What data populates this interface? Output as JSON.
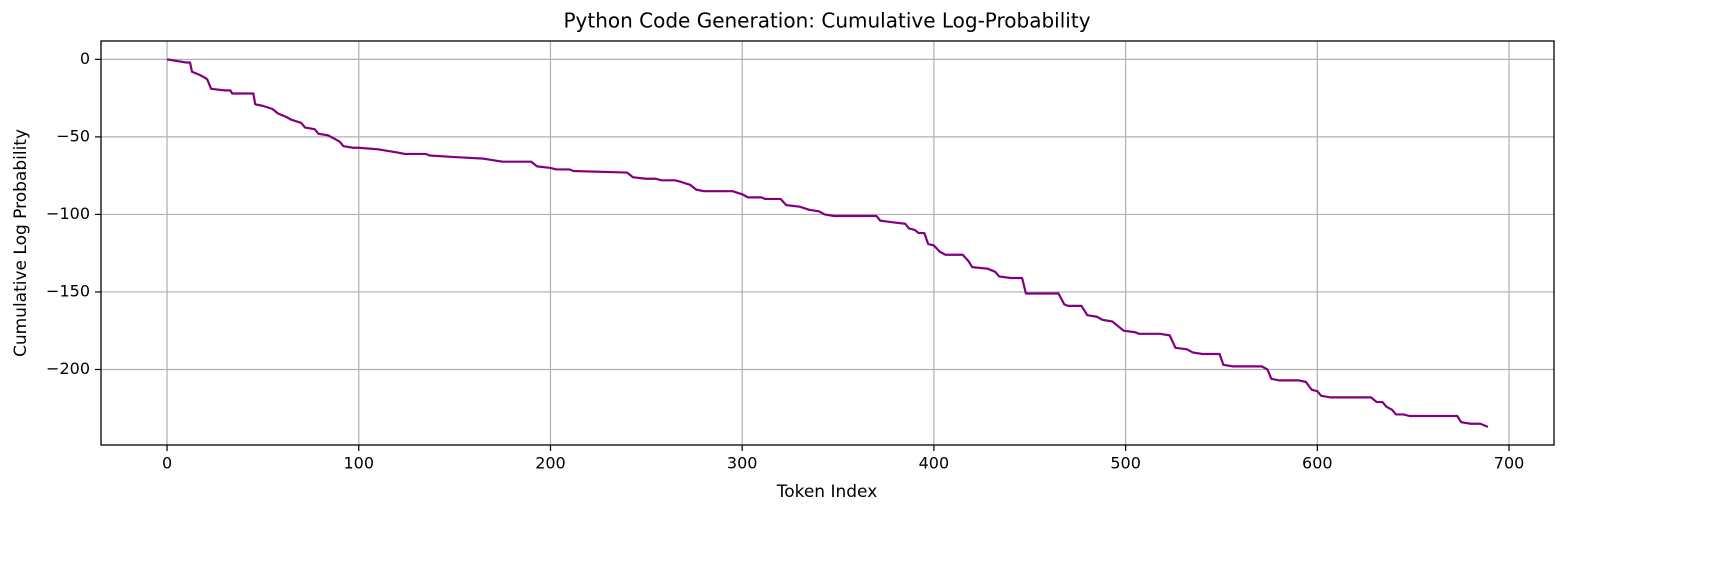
{
  "chart_data": {
    "type": "line",
    "title": "Python Code Generation: Cumulative Log-Probability",
    "x_label": "Token Index",
    "y_label": "Cumulative Log Probability",
    "color": "#800080",
    "grid": true,
    "x": [
      0,
      5,
      10,
      12,
      13,
      17,
      20,
      21,
      23,
      30,
      33,
      34,
      45,
      46,
      50,
      55,
      58,
      62,
      65,
      70,
      72,
      77,
      79,
      84,
      87,
      90,
      92,
      97,
      100,
      110,
      120,
      124,
      135,
      137,
      150,
      165,
      170,
      175,
      190,
      193,
      200,
      203,
      210,
      212,
      240,
      243,
      250,
      255,
      258,
      265,
      268,
      273,
      276,
      280,
      295,
      300,
      303,
      310,
      312,
      320,
      323,
      330,
      335,
      340,
      343,
      348,
      370,
      372,
      378,
      385,
      387,
      390,
      392,
      395,
      397,
      400,
      403,
      406,
      415,
      418,
      420,
      428,
      432,
      434,
      440,
      446,
      448,
      465,
      468,
      470,
      477,
      480,
      485,
      488,
      493,
      496,
      499,
      505,
      507,
      518,
      523,
      526,
      532,
      535,
      540,
      549,
      551,
      556,
      571,
      574,
      576,
      580,
      590,
      594,
      597,
      600,
      602,
      607,
      628,
      631,
      634,
      636,
      639,
      641,
      645,
      648,
      660,
      673,
      675,
      680,
      685,
      689
    ],
    "values": [
      0,
      -1,
      -2,
      -2,
      -8,
      -10,
      -12,
      -13,
      -19,
      -20,
      -20,
      -22,
      -22,
      -29,
      -30,
      -32,
      -35,
      -37,
      -39,
      -41,
      -44,
      -45,
      -48,
      -49,
      -51,
      -53,
      -56,
      -57,
      -57,
      -58,
      -60,
      -61,
      -61,
      -62,
      -63,
      -64,
      -65,
      -66,
      -66,
      -69,
      -70,
      -71,
      -71,
      -72,
      -73,
      -76,
      -77,
      -77,
      -78,
      -78,
      -79,
      -81,
      -84,
      -85,
      -85,
      -87,
      -89,
      -89,
      -90,
      -90,
      -94,
      -95,
      -97,
      -98,
      -100,
      -101,
      -101,
      -104,
      -105,
      -106,
      -109,
      -110,
      -112,
      -112,
      -119,
      -120,
      -124,
      -126,
      -126,
      -130,
      -134,
      -135,
      -137,
      -140,
      -141,
      -141,
      -151,
      -151,
      -158,
      -159,
      -159,
      -165,
      -166,
      -168,
      -169,
      -172,
      -175,
      -176,
      -177,
      -177,
      -178,
      -186,
      -187,
      -189,
      -190,
      -190,
      -197,
      -198,
      -198,
      -200,
      -206,
      -207,
      -207,
      -208,
      -213,
      -214,
      -217,
      -218,
      -218,
      -221,
      -221,
      -224,
      -226,
      -229,
      -229,
      -230,
      -230,
      -230,
      -234,
      -235,
      -235,
      -237
    ],
    "xlim": [
      -34.45,
      723.45
    ],
    "xticks": [
      0,
      100,
      200,
      300,
      400,
      500,
      600,
      700
    ],
    "ylim": [
      -248.7,
      11.85
    ],
    "yticks": [
      {
        "value": -200,
        "label": "−200"
      },
      {
        "value": -150,
        "label": "−150"
      },
      {
        "value": -100,
        "label": "−100"
      },
      {
        "value": -50,
        "label": "−50"
      },
      0
    ]
  }
}
